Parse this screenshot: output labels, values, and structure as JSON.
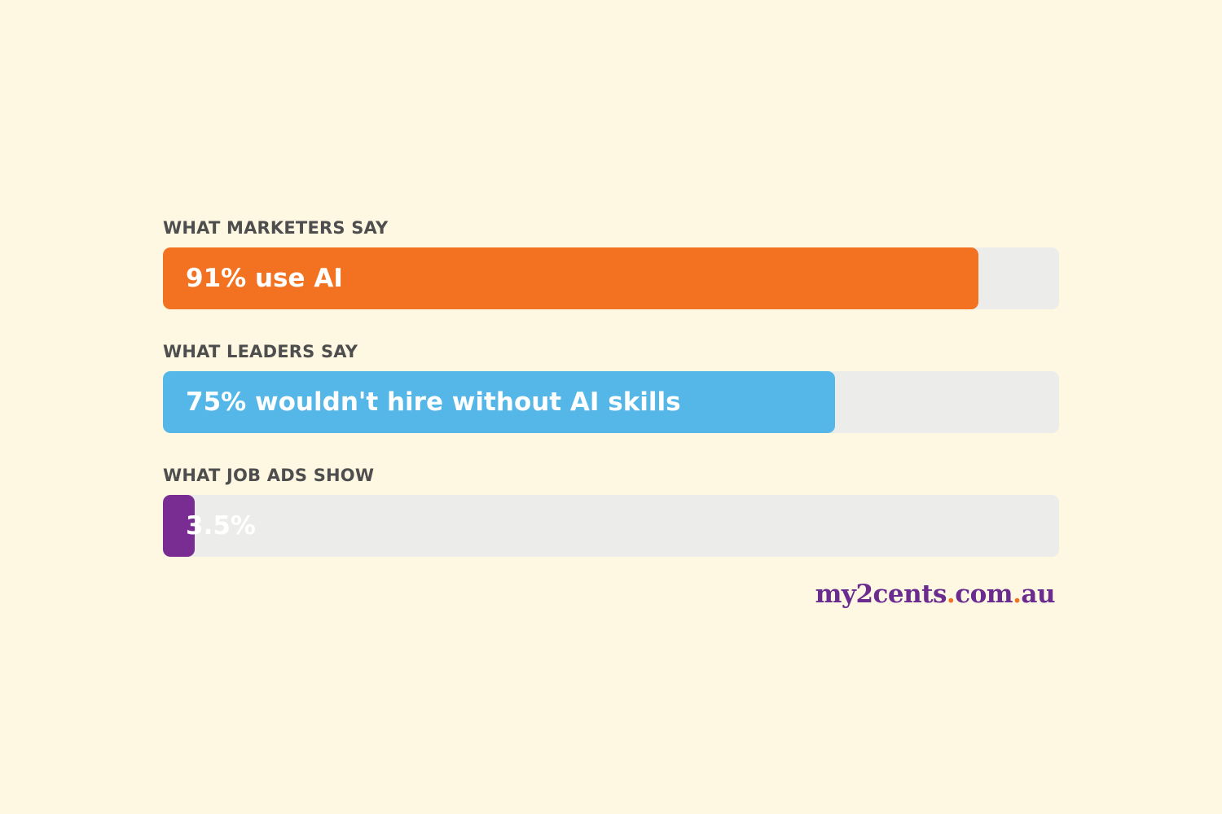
{
  "chart_data": {
    "type": "bar",
    "orientation": "horizontal",
    "xlim": [
      0,
      100
    ],
    "bars": [
      {
        "category": "WHAT MARKETERS SAY",
        "value": 91,
        "label": "91% use AI",
        "color": "#f37221"
      },
      {
        "category": "WHAT LEADERS SAY",
        "value": 75,
        "label": "75% wouldn't hire without AI skills",
        "color": "#55b7e8"
      },
      {
        "category": "WHAT JOB ADS SHOW",
        "value": 3.5,
        "label": "3.5%",
        "color": "#792d92"
      }
    ],
    "track_color": "#ececea"
  },
  "brand": {
    "parts": [
      "my2cents",
      ".",
      "com",
      ".",
      "au"
    ],
    "text_color": "#6a2c8f",
    "dot_color": "#f07022"
  }
}
